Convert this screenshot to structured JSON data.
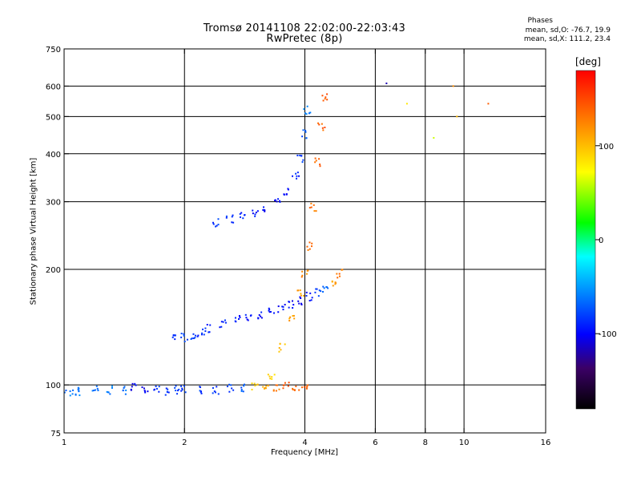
{
  "header": {
    "title_line1": "Tromsø 20141108 22:02:00-22:03:43",
    "title_line2": "RwPretec (8p)",
    "stats_title": "Phases",
    "stats_line1": "mean, sd,O: -76.7, 19.9",
    "stats_line2": "mean, sd,X: 111.2, 23.4"
  },
  "colorbar": {
    "label": "[deg]",
    "ticks": [
      "100",
      "0",
      "-100"
    ],
    "tick_values": [
      100,
      0,
      -100
    ],
    "range": [
      -180,
      180
    ],
    "colormap": [
      "#000000",
      "#3b0066",
      "#0000ff",
      "#00b0ff",
      "#00ffff",
      "#00ff00",
      "#ffff00",
      "#ff8000",
      "#ff0000"
    ]
  },
  "chart_data": {
    "type": "scatter",
    "title": "Tromsø 20141108 22:02:00-22:03:43",
    "subtitle": "RwPretec (8p)",
    "xlabel": "Frequency [MHz]",
    "ylabel": "Stationary phase Virtual Height [km]",
    "xscale": "log",
    "yscale": "log",
    "xlim": [
      1,
      16
    ],
    "ylim": [
      75,
      750
    ],
    "xticks": [
      1,
      2,
      4,
      6,
      8,
      10,
      16
    ],
    "xtick_labels": [
      "1",
      "2",
      "4",
      "6",
      "8",
      "10",
      "16"
    ],
    "xgrid": [
      2,
      4,
      6,
      8,
      10
    ],
    "yticks": [
      75,
      100,
      200,
      300,
      400,
      500,
      600,
      750
    ],
    "ytick_labels": [
      "75",
      "100",
      "200",
      "300",
      "400",
      "500",
      "600",
      "750"
    ],
    "ygrid": [
      100,
      200,
      300,
      400,
      500,
      600
    ],
    "grid": true,
    "color_scale": "phase [deg]",
    "series": [
      {
        "name": "",
        "x": [
          1.0,
          1.05,
          1.1,
          1.2,
          1.3,
          1.4,
          1.5,
          1.6,
          1.7,
          1.8,
          1.9,
          2.0,
          2.2,
          2.4,
          2.6,
          2.8,
          3.0,
          3.2,
          3.4,
          3.6,
          3.8,
          4.0
        ],
        "y": [
          96,
          96,
          96,
          97,
          97,
          97,
          99,
          98,
          98,
          96,
          97,
          97,
          97,
          97,
          98,
          98,
          99,
          99,
          99,
          99,
          99,
          99
        ],
        "phase": [
          -60,
          -60,
          -60,
          -60,
          -60,
          -60,
          -100,
          -100,
          -80,
          -90,
          -80,
          -80,
          -80,
          -80,
          -80,
          -70,
          90,
          110,
          130,
          140,
          140,
          140
        ]
      },
      {
        "name": "",
        "x": [
          1.9,
          2.0,
          2.1,
          2.2,
          2.3,
          2.5,
          2.7,
          2.9,
          3.1,
          3.3,
          3.5,
          3.7,
          3.9,
          4.1,
          4.3,
          4.5,
          4.7,
          4.9
        ],
        "y": [
          133,
          133,
          135,
          137,
          140,
          144,
          148,
          150,
          152,
          155,
          158,
          162,
          166,
          170,
          174,
          178,
          185,
          195
        ],
        "phase": [
          -80,
          -80,
          -80,
          -85,
          -85,
          -90,
          -90,
          -95,
          -95,
          -95,
          -100,
          -100,
          -100,
          -90,
          -80,
          -60,
          110,
          130
        ]
      },
      {
        "name": "",
        "x": [
          3.3,
          3.5,
          3.7,
          3.9,
          4.0,
          4.1,
          4.2,
          4.3,
          4.4,
          4.5
        ],
        "y": [
          105,
          125,
          150,
          175,
          195,
          230,
          290,
          380,
          470,
          560
        ],
        "phase": [
          90,
          100,
          110,
          110,
          120,
          130,
          130,
          140,
          140,
          140
        ]
      },
      {
        "name": "",
        "x": [
          2.4,
          2.6,
          2.8,
          3.0,
          3.2,
          3.4,
          3.6,
          3.8,
          3.9,
          4.0,
          4.05
        ],
        "y": [
          265,
          270,
          275,
          280,
          290,
          300,
          320,
          350,
          390,
          450,
          520
        ],
        "phase": [
          -80,
          -85,
          -90,
          -95,
          -100,
          -100,
          -95,
          -90,
          -80,
          -70,
          -60
        ]
      },
      {
        "name": "",
        "x": [
          6.4,
          7.2,
          8.4,
          9.4,
          9.6,
          11.5
        ],
        "y": [
          610,
          540,
          440,
          600,
          500,
          540
        ],
        "phase": [
          -120,
          80,
          60,
          120,
          100,
          140
        ]
      }
    ]
  }
}
